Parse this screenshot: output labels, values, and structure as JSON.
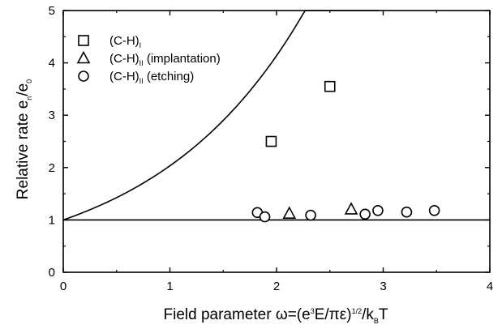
{
  "chart_data": {
    "type": "scatter",
    "xlabel": {
      "prefix": "Field parameter ",
      "omega": "ω",
      "eq": "=(e",
      "sup1": "3",
      "mid": "E/πε)",
      "sup2": "1/2",
      "slash": "/k",
      "sub": "B",
      "tail": "T"
    },
    "ylabel": {
      "main": "Relative rate e",
      "sub1": "n",
      "mid": "/e",
      "sub2": "0"
    },
    "xlim": [
      0,
      4
    ],
    "ylim": [
      0,
      5
    ],
    "xticks": [
      "0",
      "1",
      "2",
      "3",
      "4"
    ],
    "yticks": [
      "0",
      "1",
      "2",
      "3",
      "4",
      "5"
    ],
    "legend_position": "top-left",
    "series": [
      {
        "name_main": "(C-H)",
        "name_sub": "I",
        "name_tail": "",
        "marker": "square",
        "points": [
          [
            1.95,
            2.5
          ],
          [
            2.5,
            3.55
          ]
        ]
      },
      {
        "name_main": "(C-H)",
        "name_sub": "II",
        "name_tail": " (implantation)",
        "marker": "triangle",
        "points": [
          [
            2.12,
            1.12
          ],
          [
            2.7,
            1.2
          ]
        ]
      },
      {
        "name_main": "(C-H)",
        "name_sub": "II",
        "name_tail": " (etching)",
        "marker": "circle",
        "points": [
          [
            1.82,
            1.14
          ],
          [
            1.89,
            1.06
          ],
          [
            2.32,
            1.09
          ],
          [
            2.83,
            1.11
          ],
          [
            2.95,
            1.18
          ],
          [
            3.22,
            1.15
          ],
          [
            3.48,
            1.18
          ]
        ]
      }
    ],
    "curves": [
      {
        "kind": "exp",
        "a": 0.71,
        "x_max": 2.96
      },
      {
        "kind": "constant",
        "value": 1
      }
    ]
  }
}
